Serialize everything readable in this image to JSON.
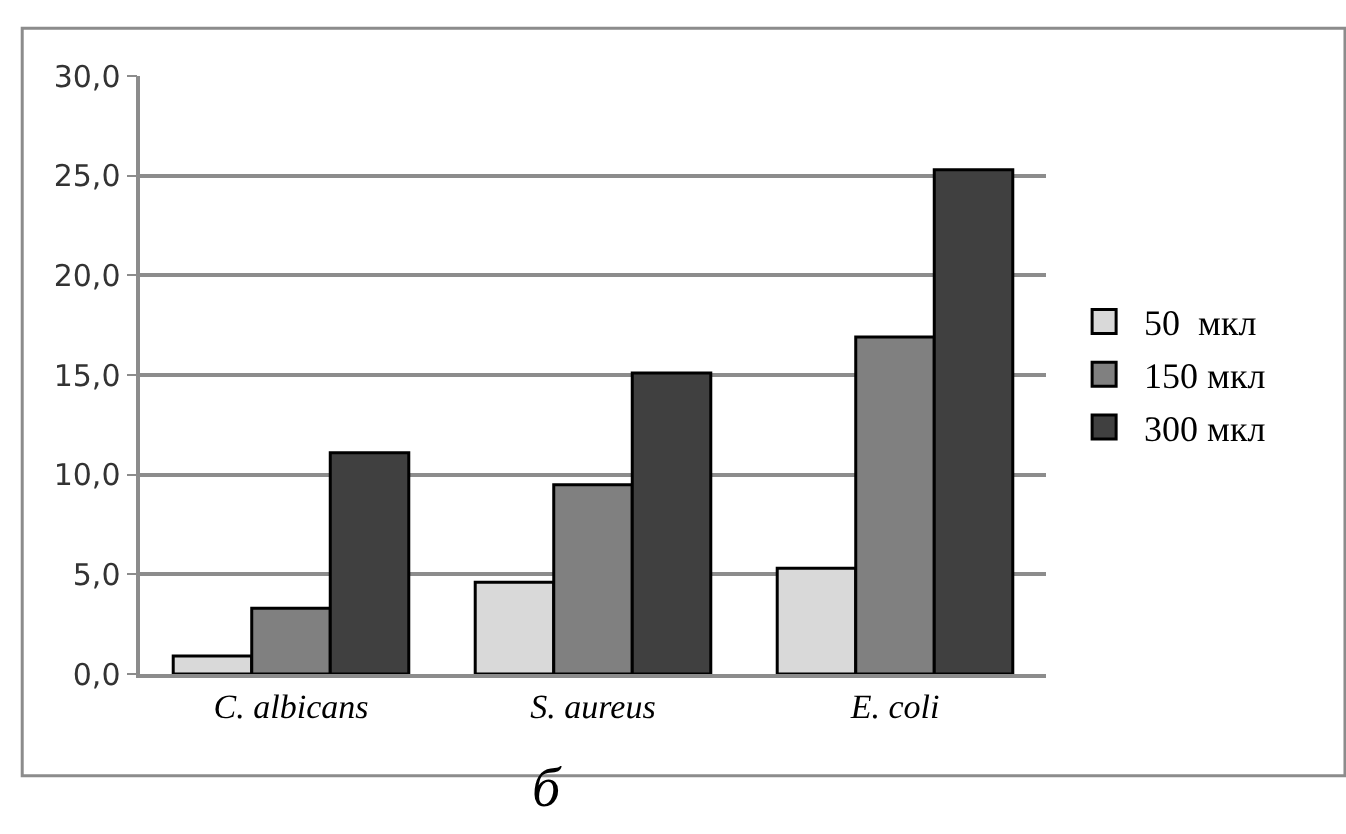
{
  "chart_data": {
    "type": "bar",
    "categories": [
      "C. albicans",
      "S. aureus",
      "E. coli"
    ],
    "series": [
      {
        "name": "50  мкл",
        "color": "#d9d9d9",
        "values": [
          0.9,
          4.6,
          5.3
        ]
      },
      {
        "name": "150 мкл",
        "color": "#808080",
        "values": [
          3.3,
          9.5,
          16.9
        ]
      },
      {
        "name": "300 мкл",
        "color": "#404040",
        "values": [
          11.1,
          15.1,
          25.3
        ]
      }
    ],
    "ylim": [
      0,
      30
    ],
    "yticks": [
      {
        "value": 0,
        "label": "0,0"
      },
      {
        "value": 5,
        "label": "5,0"
      },
      {
        "value": 10,
        "label": "10,0"
      },
      {
        "value": 15,
        "label": "15,0"
      },
      {
        "value": 20,
        "label": "20,0"
      },
      {
        "value": 25,
        "label": "25,0"
      },
      {
        "value": 30,
        "label": "30,0"
      }
    ],
    "grid": "y",
    "legend": "right",
    "annotations": [
      "б"
    ]
  }
}
